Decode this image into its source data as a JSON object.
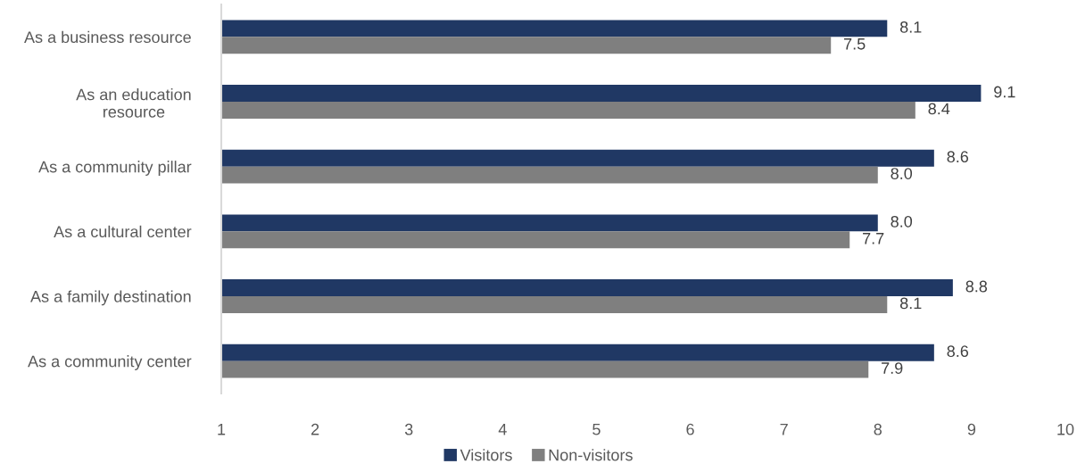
{
  "chart_data": {
    "type": "bar",
    "orientation": "horizontal",
    "categories": [
      "As a business resource",
      "As an education\nresource",
      "As a community pillar",
      "As a cultural center",
      "As a family destination",
      "As a community center"
    ],
    "series": [
      {
        "name": "Visitors",
        "color": "#203864",
        "values": [
          8.1,
          9.1,
          8.6,
          8.0,
          8.8,
          8.6
        ],
        "value_labels": [
          "8.1",
          "9.1",
          "8.6",
          "8.0",
          "8.8",
          "8.6"
        ]
      },
      {
        "name": "Non-visitors",
        "color": "#7f7f7f",
        "values": [
          7.5,
          8.4,
          8.0,
          7.7,
          8.1,
          7.9
        ],
        "value_labels": [
          "7.5",
          "8.4",
          "8.0",
          "7.7",
          "8.1",
          "7.9"
        ]
      }
    ],
    "xlim": [
      1,
      10
    ],
    "xticks": [
      1,
      2,
      3,
      4,
      5,
      6,
      7,
      8,
      9,
      10
    ],
    "grid": false,
    "legend": "bottom"
  }
}
